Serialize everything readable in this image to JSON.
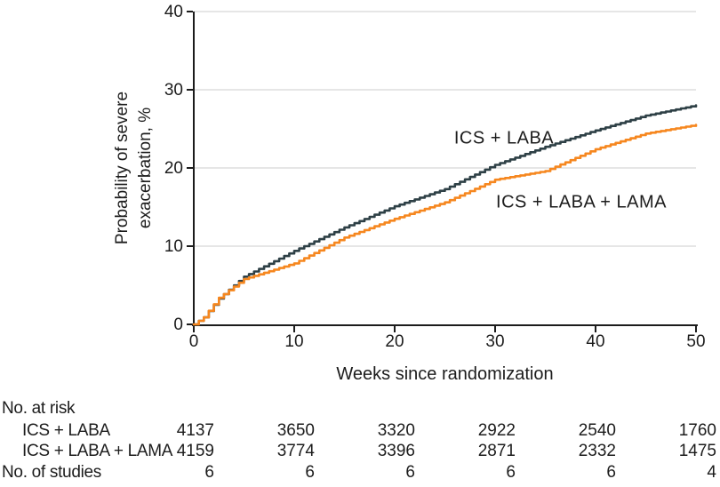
{
  "chart_data": {
    "type": "line",
    "title": "",
    "xlabel": "Weeks since randomization",
    "ylabel": "Probability of severe exacerbation, %",
    "ylabel_lines": [
      "Probability of severe",
      "exacerbation, %"
    ],
    "xlim": [
      0,
      50
    ],
    "ylim": [
      0,
      40
    ],
    "x_ticks": [
      0,
      10,
      20,
      30,
      40,
      50
    ],
    "y_ticks": [
      0,
      10,
      20,
      30,
      40
    ],
    "grid": "horizontal-only",
    "legend_position": "inline-curve-labels",
    "x": [
      0,
      1,
      2.5,
      5,
      10,
      15,
      20,
      25,
      30,
      35,
      40,
      45,
      50
    ],
    "series": [
      {
        "name": "ICS + LABA",
        "color": "#2E4046",
        "values": [
          0,
          0.9,
          3.3,
          6.1,
          9.4,
          12.4,
          15.1,
          17.3,
          20.4,
          22.7,
          24.8,
          26.7,
          28.0
        ]
      },
      {
        "name": "ICS + LABA + LAMA",
        "color": "#F6871F",
        "values": [
          0,
          0.9,
          3.4,
          5.8,
          7.8,
          11.1,
          13.5,
          15.6,
          18.5,
          19.6,
          22.4,
          24.4,
          25.5
        ]
      }
    ]
  },
  "risk_table": {
    "title": "No. at risk",
    "week_columns": [
      0,
      10,
      20,
      30,
      40,
      50
    ],
    "rows": [
      {
        "label": "ICS + LABA",
        "values": [
          "4137",
          "3650",
          "3320",
          "2922",
          "2540",
          "1760"
        ]
      },
      {
        "label": "ICS + LABA + LAMA",
        "values": [
          "4159",
          "3774",
          "3396",
          "2871",
          "2332",
          "1475"
        ]
      }
    ],
    "footer": {
      "label": "No. of studies",
      "values": [
        "6",
        "6",
        "6",
        "6",
        "6",
        "4"
      ]
    }
  },
  "colors": {
    "axis": "#1C1C1C",
    "grid": "#D8D8D8",
    "text": "#1C1C1C",
    "ics_laba_curve": "#2E4046",
    "ics_laba_lama_curve": "#F6871F",
    "background": "#FFFFFF"
  }
}
